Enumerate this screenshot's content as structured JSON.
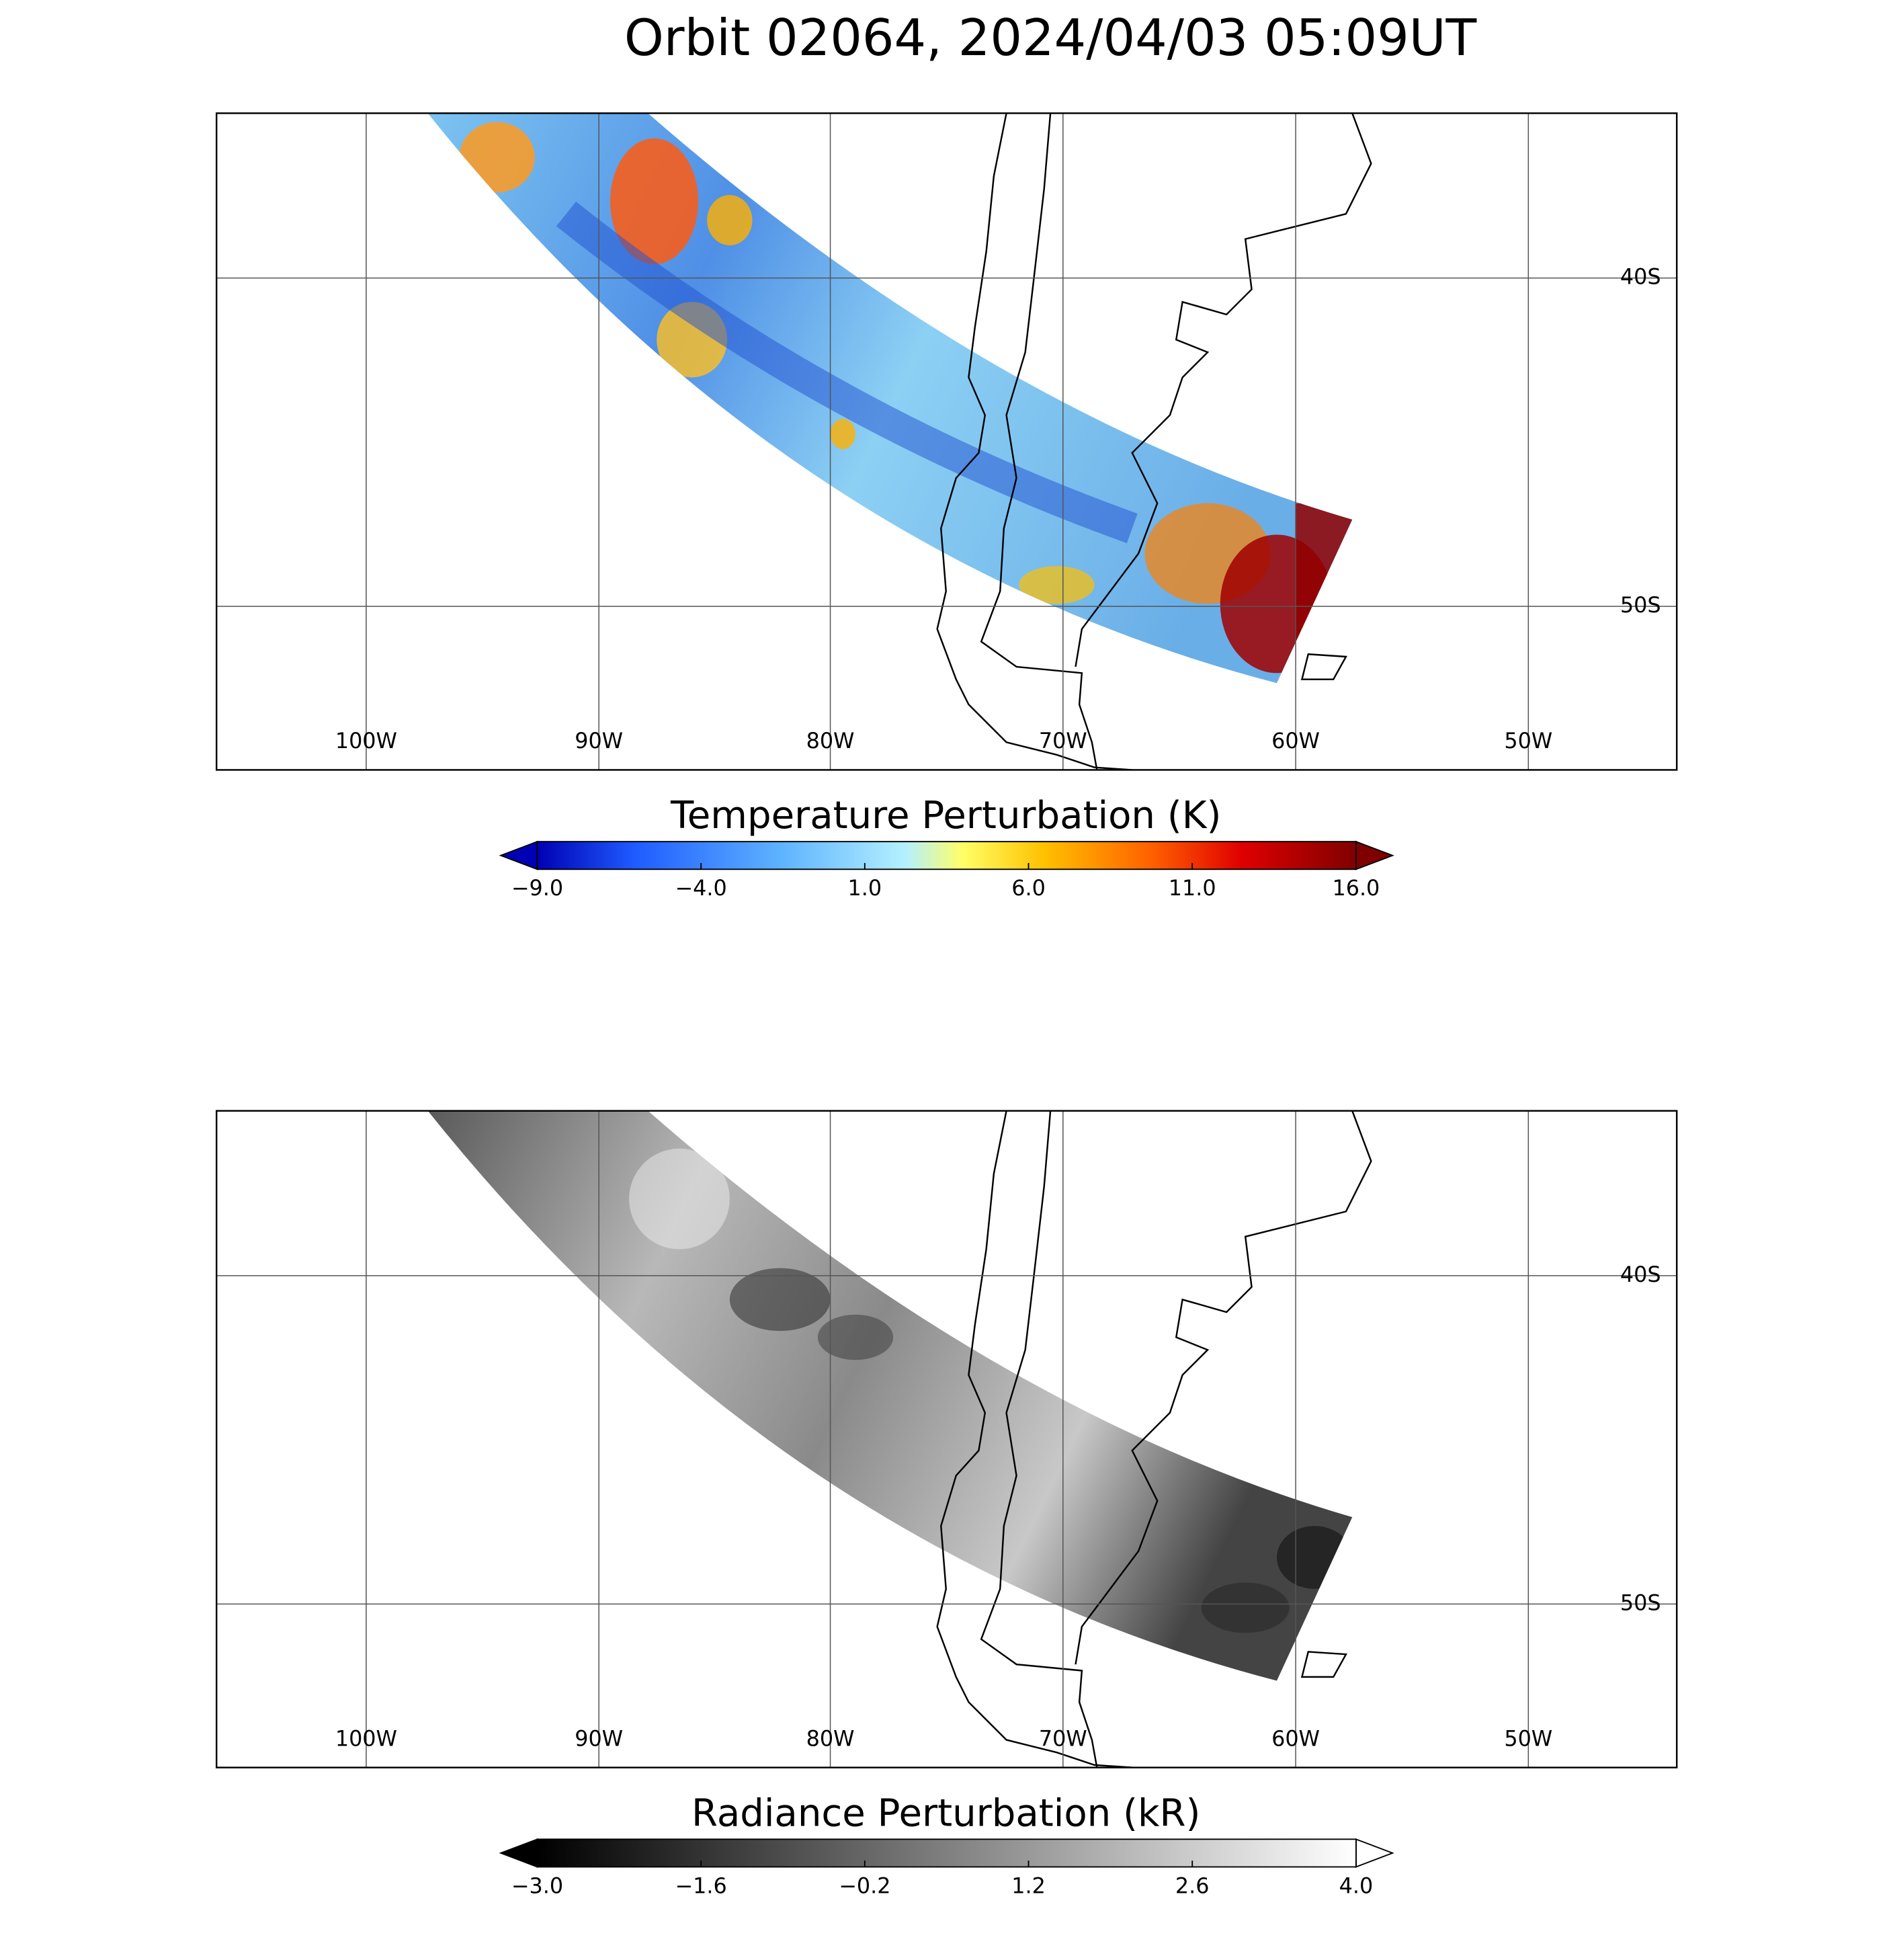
{
  "title": "Orbit 02064, 2024/04/03 05:09UT",
  "panels": [
    {
      "lon_labels": [
        "100W",
        "90W",
        "80W",
        "70W",
        "60W",
        "50W"
      ],
      "lat_labels": [
        "40S",
        "50S"
      ],
      "colorbar": {
        "title": "Temperature Perturbation (K)",
        "tick_labels": [
          "−9.0",
          "−4.0",
          "1.0",
          "6.0",
          "11.0",
          "16.0"
        ]
      }
    },
    {
      "lon_labels": [
        "100W",
        "90W",
        "80W",
        "70W",
        "60W",
        "50W"
      ],
      "lat_labels": [
        "40S",
        "50S"
      ],
      "colorbar": {
        "title": "Radiance Perturbation (kR)",
        "tick_labels": [
          "−3.0",
          "−1.6",
          "−0.2",
          "1.2",
          "2.6",
          "4.0"
        ]
      }
    }
  ]
}
